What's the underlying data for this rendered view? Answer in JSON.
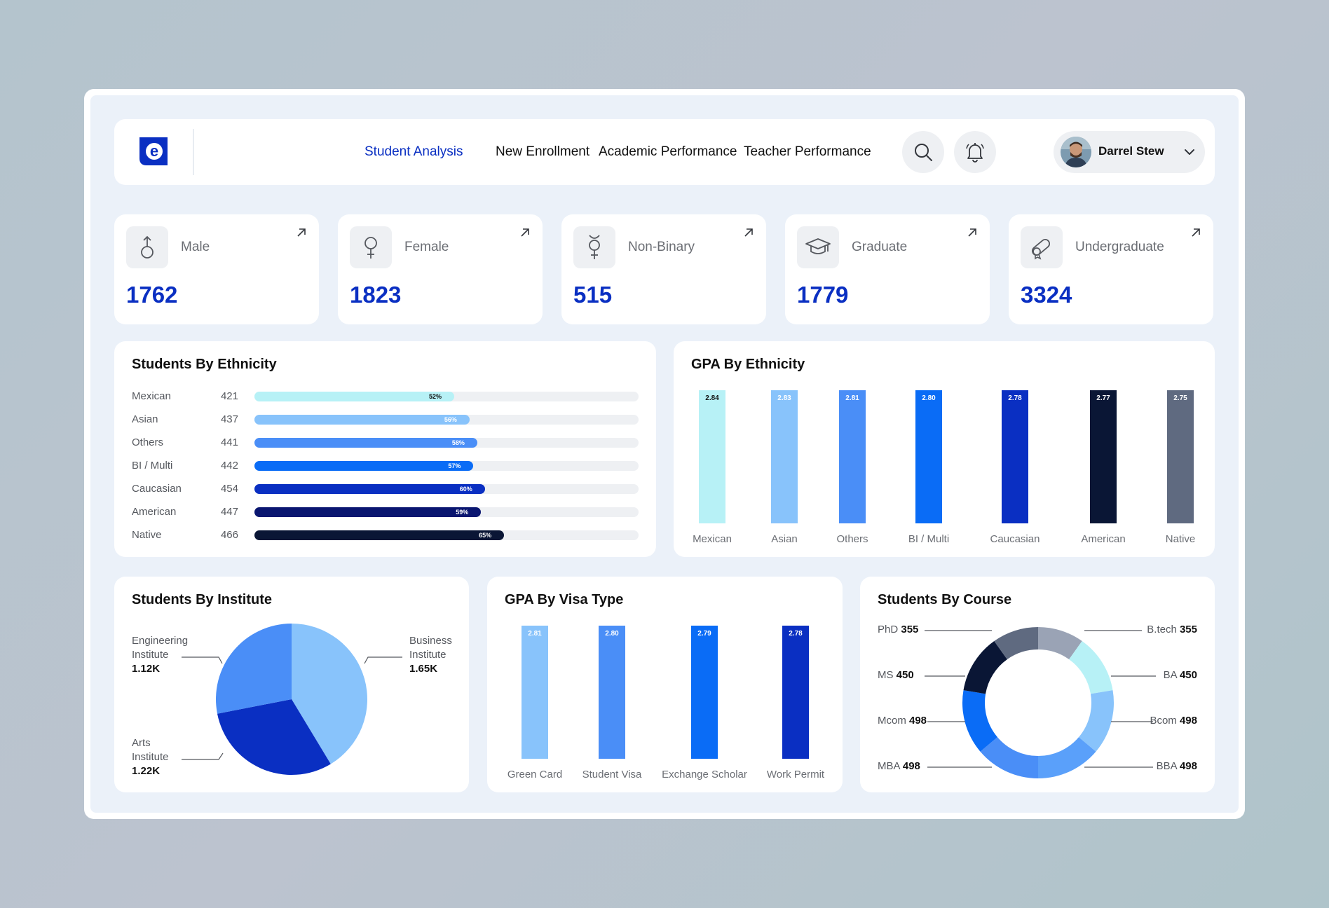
{
  "header": {
    "logo_letter": "e",
    "nav": [
      "Student Analysis",
      "New Enrollment",
      "Academic Performance",
      "Teacher Performance"
    ],
    "user_name": "Darrel Stew"
  },
  "stats": [
    {
      "label": "Male",
      "value": "1762",
      "icon": "male-icon"
    },
    {
      "label": "Female",
      "value": "1823",
      "icon": "female-icon"
    },
    {
      "label": "Non-Binary",
      "value": "515",
      "icon": "non-binary-icon"
    },
    {
      "label": "Graduate",
      "value": "1779",
      "icon": "graduation-cap-icon"
    },
    {
      "label": "Undergraduate",
      "value": "3324",
      "icon": "diploma-icon"
    }
  ],
  "ethnicity_card": {
    "title": "Students By Ethnicity",
    "rows": [
      {
        "name": "Mexican",
        "count": "421",
        "pct": "52%",
        "color": "#b7f1f6"
      },
      {
        "name": "Asian",
        "count": "437",
        "pct": "56%",
        "color": "#88c3fb"
      },
      {
        "name": "Others",
        "count": "441",
        "pct": "58%",
        "color": "#4a8ef7"
      },
      {
        "name": "BI / Multi",
        "count": "442",
        "pct": "57%",
        "color": "#0a6cf6"
      },
      {
        "name": "Caucasian",
        "count": "454",
        "pct": "60%",
        "color": "#0a2fc2"
      },
      {
        "name": "American",
        "count": "447",
        "pct": "59%",
        "color": "#0a1670"
      },
      {
        "name": "Native",
        "count": "466",
        "pct": "65%",
        "color": "#0a1635"
      }
    ]
  },
  "gpa_ethnicity": {
    "title": "GPA By Ethnicity",
    "bars": [
      {
        "label": "Mexican",
        "value": "2.84",
        "color": "#b7f1f6",
        "text_color": "#111"
      },
      {
        "label": "Asian",
        "value": "2.83",
        "color": "#88c3fb",
        "text_color": "#fff"
      },
      {
        "label": "Others",
        "value": "2.81",
        "color": "#4a8ef7",
        "text_color": "#fff"
      },
      {
        "label": "BI / Multi",
        "value": "2.80",
        "color": "#0a6cf6",
        "text_color": "#fff"
      },
      {
        "label": "Caucasian",
        "value": "2.78",
        "color": "#0a2fc2",
        "text_color": "#fff"
      },
      {
        "label": "American",
        "value": "2.77",
        "color": "#0a1635",
        "text_color": "#fff"
      },
      {
        "label": "Native",
        "value": "2.75",
        "color": "#5f6a80",
        "text_color": "#fff"
      }
    ]
  },
  "institute_card": {
    "title": "Students By Institute",
    "slices": [
      {
        "name_line1": "Engineering",
        "name_line2": "Institute",
        "value": "1.12K",
        "color": "#4a8ef7"
      },
      {
        "name_line1": "Business",
        "name_line2": "Institute",
        "value": "1.65K",
        "color": "#88c3fb"
      },
      {
        "name_line1": "Arts",
        "name_line2": "Institute",
        "value": "1.22K",
        "color": "#0a2fc2"
      }
    ]
  },
  "gpa_visa": {
    "title": "GPA By Visa Type",
    "bars": [
      {
        "label": "Green Card",
        "value": "2.81",
        "color": "#88c3fb"
      },
      {
        "label": "Student Visa",
        "value": "2.80",
        "color": "#4a8ef7"
      },
      {
        "label": "Exchange Scholar",
        "value": "2.79",
        "color": "#0a6cf6"
      },
      {
        "label": "Work Permit",
        "value": "2.78",
        "color": "#0a2fc2"
      }
    ]
  },
  "course_card": {
    "title": "Students By Course",
    "left": [
      {
        "name": "PhD",
        "value": "355"
      },
      {
        "name": "MS",
        "value": "450"
      },
      {
        "name": "Mcom",
        "value": "498"
      },
      {
        "name": "MBA",
        "value": "498"
      }
    ],
    "right": [
      {
        "name": "B.tech",
        "value": "355"
      },
      {
        "name": "BA",
        "value": "450"
      },
      {
        "name": "Bcom",
        "value": "498"
      },
      {
        "name": "BBA",
        "value": "498"
      }
    ]
  },
  "chart_data": [
    {
      "type": "bar",
      "title": "Students By Ethnicity",
      "categories": [
        "Mexican",
        "Asian",
        "Others",
        "BI / Multi",
        "Caucasian",
        "American",
        "Native"
      ],
      "values": [
        421,
        437,
        441,
        442,
        454,
        447,
        466
      ],
      "percentages": [
        52,
        56,
        58,
        57,
        60,
        59,
        65
      ],
      "orientation": "horizontal"
    },
    {
      "type": "bar",
      "title": "GPA By Ethnicity",
      "categories": [
        "Mexican",
        "Asian",
        "Others",
        "BI / Multi",
        "Caucasian",
        "American",
        "Native"
      ],
      "values": [
        2.84,
        2.83,
        2.81,
        2.8,
        2.78,
        2.77,
        2.75
      ]
    },
    {
      "type": "pie",
      "title": "Students By Institute",
      "categories": [
        "Engineering Institute",
        "Business Institute",
        "Arts Institute"
      ],
      "values": [
        1120,
        1650,
        1220
      ]
    },
    {
      "type": "bar",
      "title": "GPA By Visa Type",
      "categories": [
        "Green Card",
        "Student Visa",
        "Exchange Scholar",
        "Work Permit"
      ],
      "values": [
        2.81,
        2.8,
        2.79,
        2.78
      ]
    },
    {
      "type": "pie",
      "title": "Students By Course",
      "categories": [
        "B.tech",
        "BA",
        "Bcom",
        "BBA",
        "MBA",
        "Mcom",
        "MS",
        "PhD"
      ],
      "values": [
        355,
        450,
        498,
        498,
        498,
        498,
        450,
        355
      ],
      "colors": [
        "#9aa3b5",
        "#b7f1f6",
        "#88c3fb",
        "#5aa0fa",
        "#4a8ef7",
        "#0a6cf6",
        "#0a1635",
        "#5f6a80"
      ],
      "donut": true
    }
  ]
}
